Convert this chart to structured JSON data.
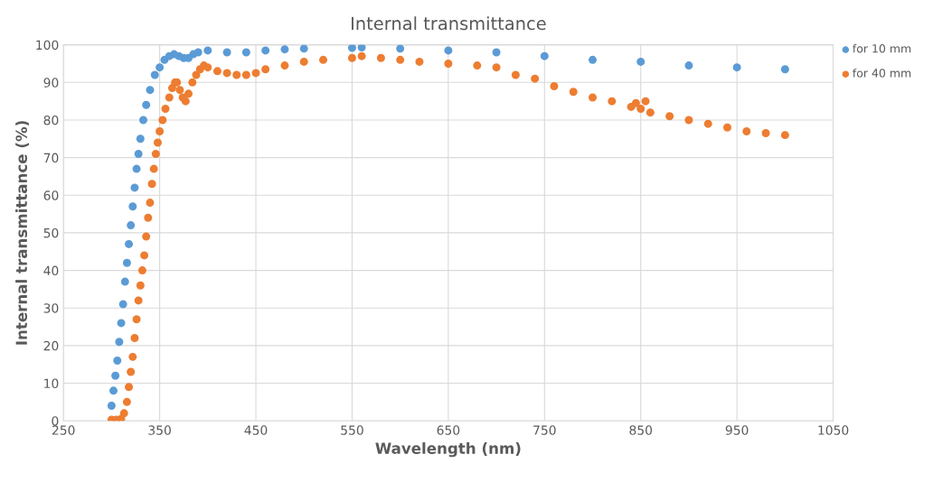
{
  "chart_data": {
    "type": "scatter",
    "title": "Internal transmittance",
    "xlabel": "Wavelength (nm)",
    "ylabel": "Internal transmittance (%)",
    "xlim": [
      250,
      1050
    ],
    "xticks": [
      250,
      350,
      450,
      550,
      650,
      750,
      850,
      950,
      1050
    ],
    "ylim": [
      0,
      100
    ],
    "yticks": [
      0,
      10,
      20,
      30,
      40,
      50,
      60,
      70,
      80,
      90,
      100
    ],
    "grid": true,
    "legend": "top right",
    "marker": "circle",
    "series": [
      {
        "name": "for 10 mm",
        "color": "#5b9bd5",
        "x": [
          300,
          302,
          304,
          306,
          308,
          310,
          312,
          314,
          316,
          318,
          320,
          322,
          324,
          326,
          328,
          330,
          333,
          336,
          340,
          345,
          350,
          355,
          360,
          365,
          370,
          375,
          380,
          385,
          390,
          400,
          420,
          440,
          460,
          480,
          500,
          550,
          560,
          600,
          650,
          700,
          750,
          800,
          850,
          900,
          950,
          1000
        ],
        "values": [
          4,
          8,
          12,
          16,
          21,
          26,
          31,
          37,
          42,
          47,
          52,
          57,
          62,
          67,
          71,
          75,
          80,
          84,
          88,
          92,
          94,
          96,
          97,
          97.5,
          97,
          96.5,
          96.5,
          97.5,
          98,
          98.5,
          98,
          98,
          98.5,
          98.8,
          99,
          99.2,
          99.3,
          99,
          98.5,
          98,
          97,
          96,
          95.5,
          94.5,
          94,
          93.5
        ]
      },
      {
        "name": "for 40 mm",
        "color": "#ed7d31",
        "x": [
          300,
          305,
          310,
          313,
          316,
          318,
          320,
          322,
          324,
          326,
          328,
          330,
          332,
          334,
          336,
          338,
          340,
          342,
          344,
          346,
          348,
          350,
          353,
          356,
          360,
          363,
          366,
          368,
          371,
          374,
          377,
          380,
          384,
          388,
          392,
          396,
          400,
          410,
          420,
          430,
          440,
          450,
          460,
          480,
          500,
          520,
          550,
          560,
          580,
          600,
          620,
          650,
          680,
          700,
          720,
          740,
          760,
          780,
          800,
          820,
          840,
          845,
          850,
          855,
          860,
          880,
          900,
          920,
          940,
          960,
          980,
          1000
        ],
        "values": [
          0.3,
          0.3,
          0.5,
          2,
          5,
          9,
          13,
          17,
          22,
          27,
          32,
          36,
          40,
          44,
          49,
          54,
          58,
          63,
          67,
          71,
          74,
          77,
          80,
          83,
          86,
          88.5,
          90,
          90,
          88,
          86,
          85,
          87,
          90,
          92,
          93.5,
          94.5,
          94,
          93,
          92.5,
          92,
          92,
          92.5,
          93.5,
          94.5,
          95.5,
          96,
          96.5,
          97,
          96.5,
          96,
          95.5,
          95,
          94.5,
          94,
          92,
          91,
          89,
          87.5,
          86,
          85,
          83.5,
          84.5,
          83,
          85,
          82,
          81,
          80,
          79,
          78,
          77,
          76.5,
          76
        ]
      }
    ]
  }
}
